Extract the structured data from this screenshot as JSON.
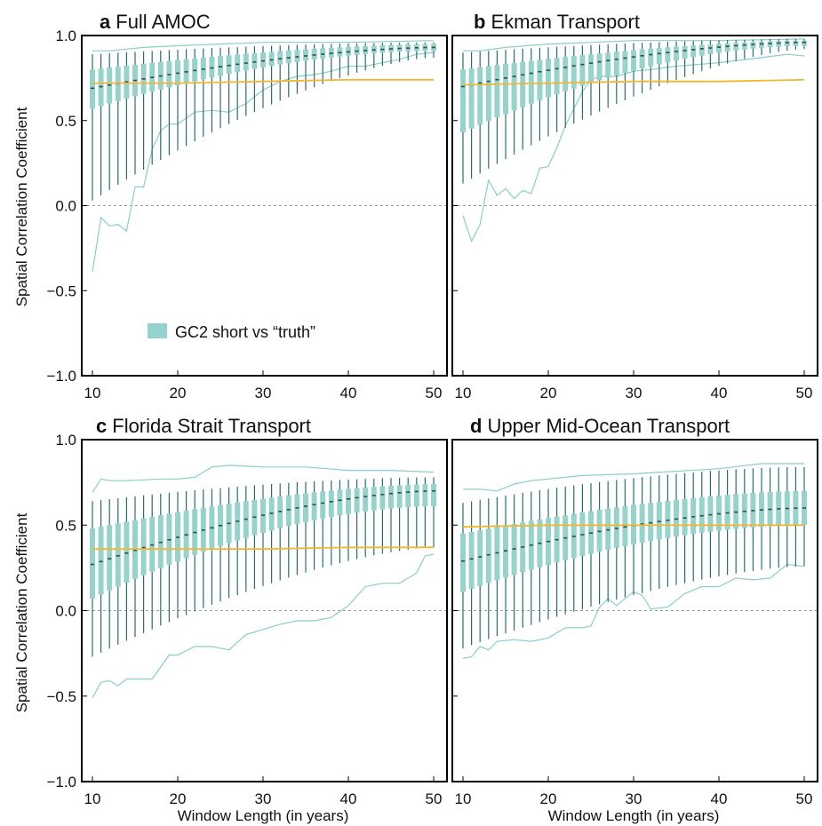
{
  "colors": {
    "box": "#97d3cd",
    "whisker": "#2a6f6c",
    "median": "#2a4d4c",
    "envelope": "#89cfc7",
    "reference": "#f2b632",
    "zero_line": "#9a9a9a",
    "frame": "#000000"
  },
  "legend": {
    "label": "GC2 short vs “truth”"
  },
  "axes": {
    "ylabel": "Spatial Correlation Coefficient",
    "xlabel": "Window Length (in years)",
    "yticks": [
      "1.0",
      "0.5",
      "0.0",
      "-0.5",
      "-1.0"
    ],
    "xticks": [
      "10",
      "20",
      "30",
      "40",
      "50"
    ]
  },
  "panels": [
    {
      "letter": "a",
      "name": "Full AMOC"
    },
    {
      "letter": "b",
      "name": "Ekman Transport"
    },
    {
      "letter": "c",
      "name": "Florida Strait Transport"
    },
    {
      "letter": "d",
      "name": "Upper Mid-Ocean Transport"
    }
  ],
  "chart_data": [
    {
      "type": "box",
      "title": "a Full AMOC",
      "xlabel": "",
      "ylabel": "Spatial Correlation Coefficient",
      "xlim": [
        9,
        51
      ],
      "ylim": [
        -1,
        1
      ],
      "legend": "GC2 short vs “truth”",
      "grid": false,
      "x": [
        10,
        50
      ],
      "median": [
        0.69,
        0.93
      ],
      "q1": [
        0.57,
        0.91
      ],
      "q3": [
        0.8,
        0.95
      ],
      "whisker_low": [
        0.03,
        0.87
      ],
      "whisker_high": [
        0.89,
        0.96
      ],
      "envelope_min": [
        [
          10,
          -0.39
        ],
        [
          11,
          -0.07
        ],
        [
          12,
          -0.12
        ],
        [
          13,
          -0.11
        ],
        [
          14,
          -0.15
        ],
        [
          15,
          0.11
        ],
        [
          16,
          0.11
        ],
        [
          17,
          0.33
        ],
        [
          18,
          0.44
        ],
        [
          19,
          0.48
        ],
        [
          20,
          0.48
        ],
        [
          22,
          0.55
        ],
        [
          24,
          0.56
        ],
        [
          26,
          0.55
        ],
        [
          28,
          0.6
        ],
        [
          30,
          0.68
        ],
        [
          32,
          0.73
        ],
        [
          34,
          0.76
        ],
        [
          36,
          0.77
        ],
        [
          38,
          0.79
        ],
        [
          40,
          0.82
        ],
        [
          42,
          0.82
        ],
        [
          44,
          0.84
        ],
        [
          46,
          0.86
        ],
        [
          48,
          0.89
        ],
        [
          50,
          0.9
        ]
      ],
      "envelope_max": [
        [
          10,
          0.91
        ],
        [
          12,
          0.91
        ],
        [
          14,
          0.92
        ],
        [
          16,
          0.93
        ],
        [
          20,
          0.94
        ],
        [
          25,
          0.95
        ],
        [
          30,
          0.96
        ],
        [
          40,
          0.96
        ],
        [
          50,
          0.97
        ]
      ],
      "reference": [
        [
          10,
          0.72
        ],
        [
          20,
          0.72
        ],
        [
          30,
          0.73
        ],
        [
          40,
          0.74
        ],
        [
          50,
          0.74
        ]
      ]
    },
    {
      "type": "box",
      "title": "b Ekman Transport",
      "xlabel": "",
      "ylabel": "",
      "xlim": [
        9,
        51
      ],
      "ylim": [
        -1,
        1
      ],
      "grid": false,
      "x": [
        10,
        50
      ],
      "median": [
        0.7,
        0.96
      ],
      "q1": [
        0.43,
        0.94
      ],
      "q3": [
        0.8,
        0.97
      ],
      "whisker_low": [
        0.13,
        0.92
      ],
      "whisker_high": [
        0.9,
        0.98
      ],
      "envelope_min": [
        [
          10,
          -0.06
        ],
        [
          11,
          -0.21
        ],
        [
          12,
          -0.11
        ],
        [
          13,
          0.15
        ],
        [
          14,
          0.06
        ],
        [
          15,
          0.1
        ],
        [
          16,
          0.04
        ],
        [
          17,
          0.09
        ],
        [
          18,
          0.07
        ],
        [
          19,
          0.22
        ],
        [
          20,
          0.23
        ],
        [
          21,
          0.34
        ],
        [
          22,
          0.47
        ],
        [
          23,
          0.57
        ],
        [
          24,
          0.67
        ],
        [
          25,
          0.74
        ],
        [
          26,
          0.76
        ],
        [
          28,
          0.76
        ],
        [
          30,
          0.79
        ],
        [
          32,
          0.8
        ],
        [
          35,
          0.82
        ],
        [
          40,
          0.84
        ],
        [
          45,
          0.87
        ],
        [
          48,
          0.89
        ],
        [
          50,
          0.88
        ]
      ],
      "envelope_max": [
        [
          10,
          0.91
        ],
        [
          12,
          0.91
        ],
        [
          15,
          0.93
        ],
        [
          20,
          0.95
        ],
        [
          25,
          0.96
        ],
        [
          30,
          0.97
        ],
        [
          40,
          0.97
        ],
        [
          50,
          0.98
        ]
      ],
      "reference": [
        [
          10,
          0.71
        ],
        [
          20,
          0.72
        ],
        [
          30,
          0.73
        ],
        [
          40,
          0.73
        ],
        [
          50,
          0.74
        ]
      ]
    },
    {
      "type": "box",
      "title": "c Florida Strait Transport",
      "xlabel": "Window Length (in years)",
      "ylabel": "Spatial Correlation Coefficient",
      "xlim": [
        9,
        51
      ],
      "ylim": [
        -1,
        1
      ],
      "grid": false,
      "x": [
        10,
        50
      ],
      "median": [
        0.27,
        0.7
      ],
      "q1": [
        0.07,
        0.61
      ],
      "q3": [
        0.48,
        0.74
      ],
      "whisker_low": [
        -0.27,
        0.37
      ],
      "whisker_high": [
        0.64,
        0.78
      ],
      "envelope_min": [
        [
          10,
          -0.51
        ],
        [
          11,
          -0.42
        ],
        [
          12,
          -0.41
        ],
        [
          13,
          -0.44
        ],
        [
          14,
          -0.4
        ],
        [
          15,
          -0.4
        ],
        [
          16,
          -0.4
        ],
        [
          17,
          -0.4
        ],
        [
          18,
          -0.33
        ],
        [
          19,
          -0.26
        ],
        [
          20,
          -0.26
        ],
        [
          22,
          -0.21
        ],
        [
          24,
          -0.21
        ],
        [
          26,
          -0.23
        ],
        [
          28,
          -0.14
        ],
        [
          30,
          -0.11
        ],
        [
          32,
          -0.08
        ],
        [
          34,
          -0.06
        ],
        [
          36,
          -0.06
        ],
        [
          38,
          -0.04
        ],
        [
          40,
          0.03
        ],
        [
          42,
          0.14
        ],
        [
          44,
          0.16
        ],
        [
          46,
          0.16
        ],
        [
          48,
          0.22
        ],
        [
          49,
          0.32
        ],
        [
          50,
          0.33
        ]
      ],
      "envelope_max": [
        [
          10,
          0.69
        ],
        [
          11,
          0.77
        ],
        [
          12,
          0.76
        ],
        [
          14,
          0.76
        ],
        [
          18,
          0.77
        ],
        [
          20,
          0.77
        ],
        [
          22,
          0.78
        ],
        [
          24,
          0.84
        ],
        [
          26,
          0.85
        ],
        [
          30,
          0.84
        ],
        [
          35,
          0.84
        ],
        [
          40,
          0.82
        ],
        [
          45,
          0.82
        ],
        [
          50,
          0.81
        ]
      ],
      "reference": [
        [
          10,
          0.36
        ],
        [
          20,
          0.36
        ],
        [
          30,
          0.36
        ],
        [
          40,
          0.37
        ],
        [
          50,
          0.37
        ]
      ]
    },
    {
      "type": "box",
      "title": "d Upper Mid-Ocean Transport",
      "xlabel": "Window Length (in years)",
      "ylabel": "",
      "xlim": [
        9,
        51
      ],
      "ylim": [
        -1,
        1
      ],
      "grid": false,
      "x": [
        10,
        50
      ],
      "median": [
        0.29,
        0.6
      ],
      "q1": [
        0.11,
        0.5
      ],
      "q3": [
        0.45,
        0.7
      ],
      "whisker_low": [
        -0.22,
        0.26
      ],
      "whisker_high": [
        0.63,
        0.84
      ],
      "envelope_min": [
        [
          10,
          -0.28
        ],
        [
          11,
          -0.27
        ],
        [
          12,
          -0.21
        ],
        [
          13,
          -0.23
        ],
        [
          14,
          -0.18
        ],
        [
          16,
          -0.17
        ],
        [
          18,
          -0.18
        ],
        [
          20,
          -0.16
        ],
        [
          22,
          -0.1
        ],
        [
          24,
          -0.1
        ],
        [
          25,
          -0.09
        ],
        [
          26,
          0.02
        ],
        [
          27,
          0.07
        ],
        [
          28,
          0.03
        ],
        [
          30,
          0.11
        ],
        [
          31,
          0.09
        ],
        [
          32,
          0.01
        ],
        [
          34,
          0.02
        ],
        [
          36,
          0.1
        ],
        [
          38,
          0.14
        ],
        [
          40,
          0.14
        ],
        [
          42,
          0.19
        ],
        [
          44,
          0.18
        ],
        [
          46,
          0.19
        ],
        [
          48,
          0.27
        ],
        [
          50,
          0.26
        ]
      ],
      "envelope_max": [
        [
          10,
          0.71
        ],
        [
          12,
          0.71
        ],
        [
          14,
          0.7
        ],
        [
          16,
          0.74
        ],
        [
          18,
          0.76
        ],
        [
          20,
          0.77
        ],
        [
          24,
          0.79
        ],
        [
          30,
          0.8
        ],
        [
          40,
          0.83
        ],
        [
          45,
          0.86
        ],
        [
          50,
          0.86
        ]
      ],
      "reference": [
        [
          10,
          0.49
        ],
        [
          20,
          0.5
        ],
        [
          30,
          0.5
        ],
        [
          40,
          0.5
        ],
        [
          50,
          0.5
        ]
      ]
    }
  ]
}
